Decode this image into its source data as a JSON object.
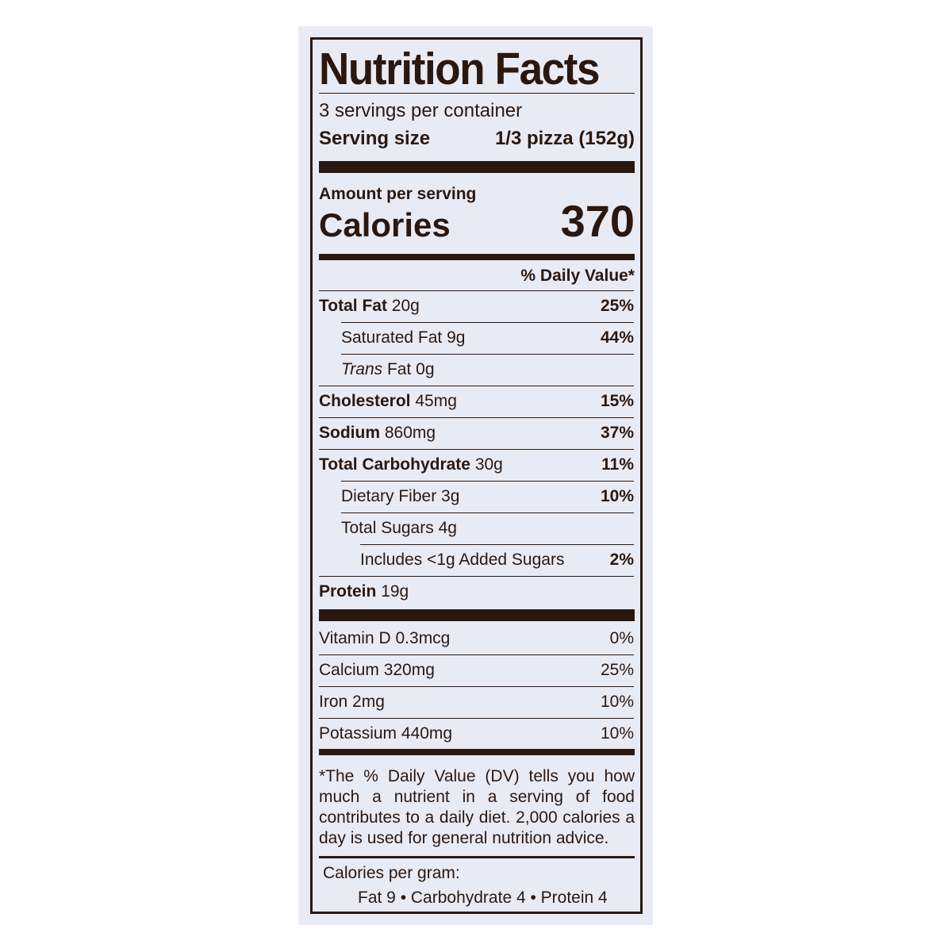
{
  "title": "Nutrition Facts",
  "servings_per_container": "3 servings per container",
  "serving_size_label": "Serving size",
  "serving_size_value": "1/3 pizza (152g)",
  "amount_per_serving": "Amount per serving",
  "calories_label": "Calories",
  "calories_value": "370",
  "daily_value_header": "% Daily Value*",
  "nutrients": [
    {
      "name": "Total Fat",
      "amount": "20g",
      "dv": "25%",
      "bold": true,
      "indent": 0
    },
    {
      "name": "Saturated Fat",
      "amount": "9g",
      "dv": "44%",
      "bold": false,
      "indent": 1
    },
    {
      "name": "Trans",
      "name_suffix": "Fat",
      "amount": "0g",
      "dv": "",
      "bold": false,
      "indent": 1,
      "italic": true
    },
    {
      "name": "Cholesterol",
      "amount": "45mg",
      "dv": "15%",
      "bold": true,
      "indent": 0
    },
    {
      "name": "Sodium",
      "amount": "860mg",
      "dv": "37%",
      "bold": true,
      "indent": 0
    },
    {
      "name": "Total Carbohydrate",
      "amount": "30g",
      "dv": "11%",
      "bold": true,
      "indent": 0
    },
    {
      "name": "Dietary Fiber",
      "amount": "3g",
      "dv": "10%",
      "bold": false,
      "indent": 1
    },
    {
      "name": "Total Sugars",
      "amount": "4g",
      "dv": "",
      "bold": false,
      "indent": 1
    },
    {
      "name": "Includes <1g Added Sugars",
      "amount": "",
      "dv": "2%",
      "bold": false,
      "indent": 2
    },
    {
      "name": "Protein",
      "amount": "19g",
      "dv": "",
      "bold": true,
      "indent": 0
    }
  ],
  "vitamins": [
    {
      "name": "Vitamin D",
      "amount": "0.3mcg",
      "dv": "0%"
    },
    {
      "name": "Calcium",
      "amount": "320mg",
      "dv": "25%"
    },
    {
      "name": "Iron",
      "amount": "2mg",
      "dv": "10%"
    },
    {
      "name": "Potassium",
      "amount": "440mg",
      "dv": "10%"
    }
  ],
  "footnote": "*The % Daily Value (DV) tells you how much a nutrient in a serving of food contributes to a daily diet. 2,000 calories a day is used for general nutrition advice.",
  "calories_per_gram_label": "Calories per gram:",
  "calories_per_gram_values": "Fat 9 • Carbohydrate 4 • Protein 4",
  "colors": {
    "ink": "#2a1810",
    "background": "#e9ebf4"
  }
}
